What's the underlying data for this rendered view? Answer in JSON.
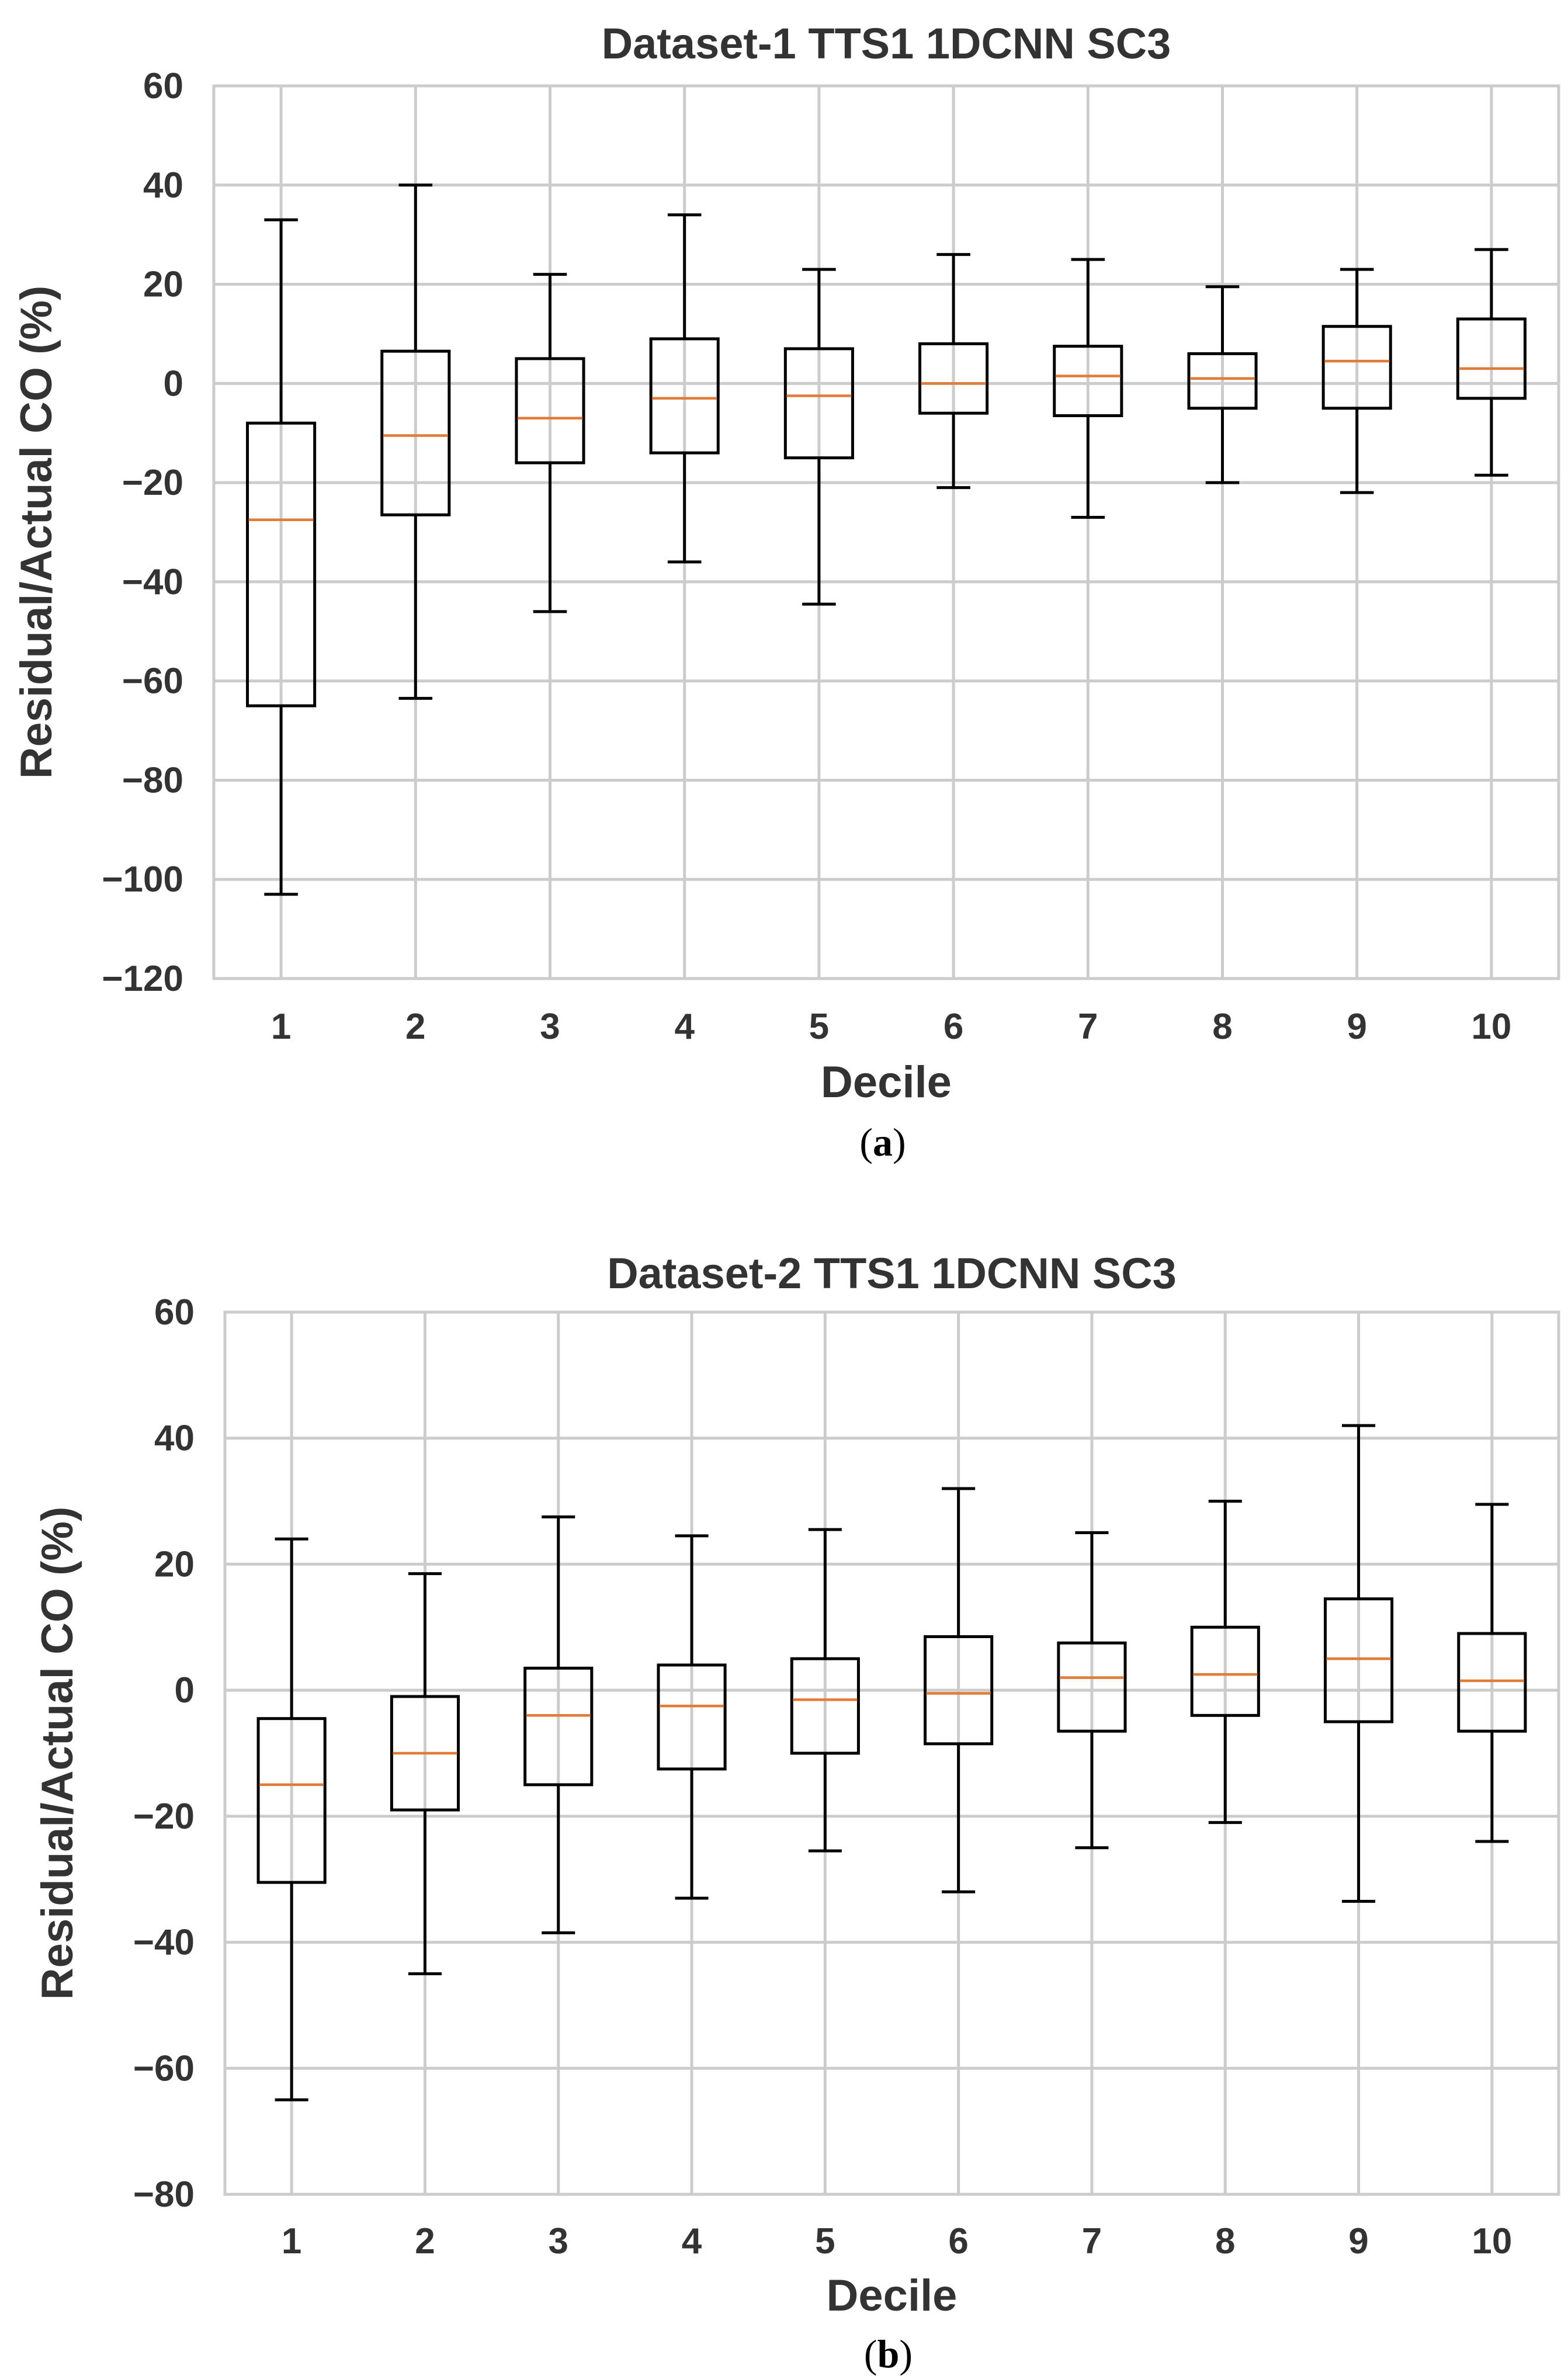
{
  "chart_data": [
    {
      "type": "box",
      "title": "Dataset-1 TTS1 1DCNN SC3",
      "xlabel": "Decile",
      "ylabel": "Residual/Actual CO (%)",
      "caption_letter": "a",
      "ylim": [
        -120,
        60
      ],
      "yticks": [
        60,
        40,
        20,
        0,
        -20,
        -40,
        -60,
        -80,
        -100,
        -120
      ],
      "ytick_labels": [
        "60",
        "40",
        "20",
        "0",
        "−20",
        "−40",
        "−60",
        "−80",
        "−100",
        "−120"
      ],
      "categories": [
        "1",
        "2",
        "3",
        "4",
        "5",
        "6",
        "7",
        "8",
        "9",
        "10"
      ],
      "grid": true,
      "median_color": "#e07b39",
      "boxes": [
        {
          "whislo": -103,
          "q1": -65,
          "med": -27.5,
          "q3": -8,
          "whishi": 33
        },
        {
          "whislo": -63.5,
          "q1": -26.5,
          "med": -10.5,
          "q3": 6.5,
          "whishi": 40
        },
        {
          "whislo": -46,
          "q1": -16,
          "med": -7,
          "q3": 5,
          "whishi": 22
        },
        {
          "whislo": -36,
          "q1": -14,
          "med": -3,
          "q3": 9,
          "whishi": 34
        },
        {
          "whislo": -44.5,
          "q1": -15,
          "med": -2.5,
          "q3": 7,
          "whishi": 23
        },
        {
          "whislo": -21,
          "q1": -6,
          "med": 0,
          "q3": 8,
          "whishi": 26
        },
        {
          "whislo": -27,
          "q1": -6.5,
          "med": 1.5,
          "q3": 7.5,
          "whishi": 25
        },
        {
          "whislo": -20,
          "q1": -5,
          "med": 1,
          "q3": 6,
          "whishi": 19.5
        },
        {
          "whislo": -22,
          "q1": -5,
          "med": 4.5,
          "q3": 11.5,
          "whishi": 23
        },
        {
          "whislo": -18.5,
          "q1": -3,
          "med": 3,
          "q3": 13,
          "whishi": 27
        }
      ]
    },
    {
      "type": "box",
      "title": "Dataset-2 TTS1 1DCNN SC3",
      "xlabel": "Decile",
      "ylabel": "Residual/Actual CO (%)",
      "caption_letter": "b",
      "ylim": [
        -80,
        60
      ],
      "yticks": [
        60,
        40,
        20,
        0,
        -20,
        -40,
        -60,
        -80
      ],
      "ytick_labels": [
        "60",
        "40",
        "20",
        "0",
        "−20",
        "−40",
        "−60",
        "−80"
      ],
      "categories": [
        "1",
        "2",
        "3",
        "4",
        "5",
        "6",
        "7",
        "8",
        "9",
        "10"
      ],
      "grid": true,
      "median_color": "#e07b39",
      "boxes": [
        {
          "whislo": -65,
          "q1": -30.5,
          "med": -15,
          "q3": -4.5,
          "whishi": 24
        },
        {
          "whislo": -45,
          "q1": -19,
          "med": -10,
          "q3": -1,
          "whishi": 18.5
        },
        {
          "whislo": -38.5,
          "q1": -15,
          "med": -4,
          "q3": 3.5,
          "whishi": 27.5
        },
        {
          "whislo": -33,
          "q1": -12.5,
          "med": -2.5,
          "q3": 4,
          "whishi": 24.5
        },
        {
          "whislo": -25.5,
          "q1": -10,
          "med": -1.5,
          "q3": 5,
          "whishi": 25.5
        },
        {
          "whislo": -32,
          "q1": -8.5,
          "med": -0.5,
          "q3": 8.5,
          "whishi": 32
        },
        {
          "whislo": -25,
          "q1": -6.5,
          "med": 2,
          "q3": 7.5,
          "whishi": 25
        },
        {
          "whislo": -21,
          "q1": -4,
          "med": 2.5,
          "q3": 10,
          "whishi": 30
        },
        {
          "whislo": -33.5,
          "q1": -5,
          "med": 5,
          "q3": 14.5,
          "whishi": 42
        },
        {
          "whislo": -24,
          "q1": -6.5,
          "med": 1.5,
          "q3": 9,
          "whishi": 29.5
        }
      ]
    }
  ]
}
